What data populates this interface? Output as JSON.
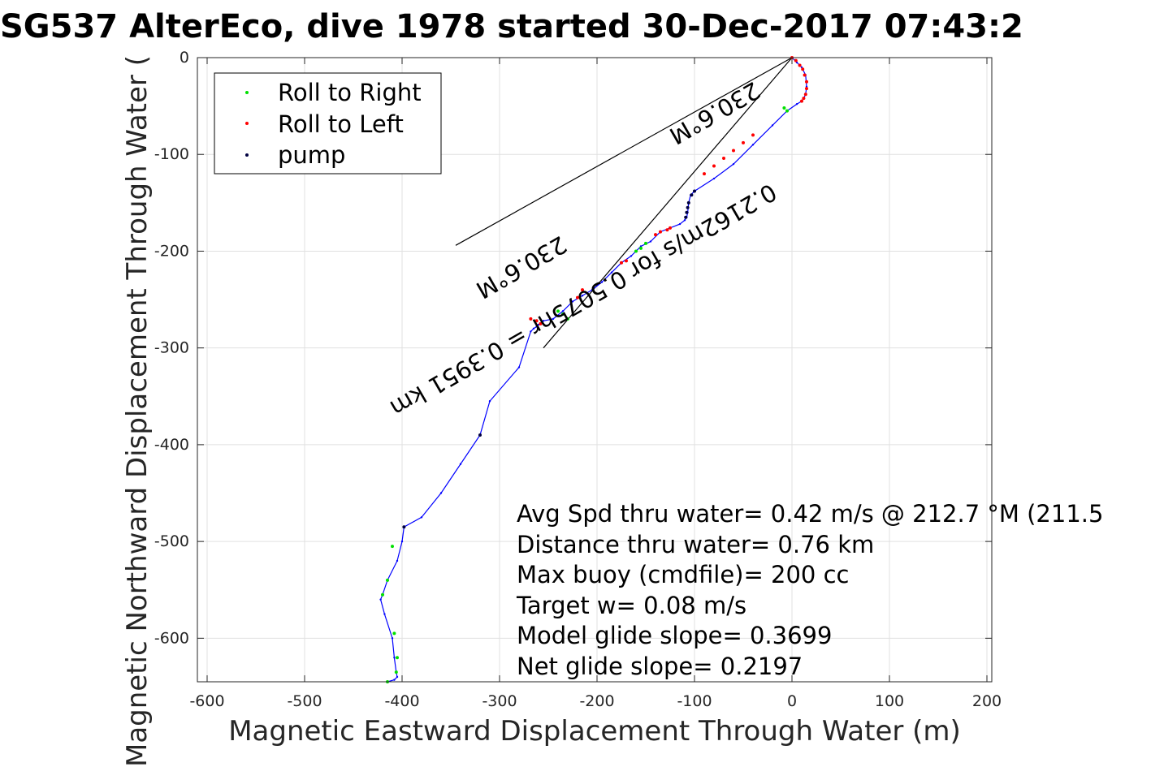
{
  "chart_data": {
    "type": "line",
    "title": "SG537 AlterEco, dive 1978 started 30-Dec-2017 07:43:2",
    "xlabel": "Magnetic Eastward Displacement Through Water (m)",
    "ylabel": "Magnetic Northward Displacement Through Water (",
    "xlim": [
      -610,
      205
    ],
    "ylim": [
      -645,
      0
    ],
    "grid": true,
    "xticks": [
      -600,
      -500,
      -400,
      -300,
      -200,
      -100,
      0,
      100,
      200
    ],
    "yticks": [
      0,
      -100,
      -200,
      -300,
      -400,
      -500,
      -600
    ],
    "colors": {
      "track": "#0000ff",
      "roll_right": "#00e000",
      "roll_left": "#ff0000",
      "pump": "#000040",
      "guide": "#000000"
    },
    "legend": {
      "position": "top-left",
      "entries": [
        "Roll to Right",
        "Roll to Left",
        "pump"
      ]
    },
    "series": [
      {
        "name": "track",
        "x": [
          0,
          5,
          10,
          14,
          15,
          14,
          12,
          10,
          5,
          -5,
          -20,
          -40,
          -60,
          -80,
          -100,
          -104,
          -106,
          -107,
          -108,
          -110,
          -115,
          -125,
          -135,
          -145,
          -155,
          -165,
          -175,
          -185,
          -195,
          -205,
          -215,
          -225,
          -235,
          -245,
          -255,
          -260,
          -262,
          -265,
          -268,
          -280,
          -310,
          -320,
          -340,
          -360,
          -380,
          -398,
          -400,
          -405,
          -415,
          -420,
          -422,
          -418,
          -410,
          -408,
          -406,
          -405,
          -408,
          -415
        ],
        "y": [
          0,
          -5,
          -10,
          -18,
          -30,
          -38,
          -42,
          -45,
          -48,
          -55,
          -70,
          -90,
          -110,
          -125,
          -138,
          -142,
          -150,
          -160,
          -165,
          -168,
          -172,
          -176,
          -180,
          -190,
          -195,
          -205,
          -212,
          -222,
          -232,
          -240,
          -246,
          -252,
          -262,
          -270,
          -272,
          -276,
          -278,
          -280,
          -283,
          -320,
          -355,
          -390,
          -420,
          -450,
          -475,
          -485,
          -500,
          -520,
          -540,
          -555,
          -560,
          -575,
          -600,
          -620,
          -635,
          -640,
          -643,
          -645
        ]
      },
      {
        "name": "Roll to Right",
        "x": [
          -5,
          -8,
          -150,
          -155,
          -160,
          -230,
          -235,
          -240,
          -410,
          -415,
          -420,
          -408,
          -405,
          -406,
          -415
        ],
        "y": [
          -55,
          -52,
          -192,
          -197,
          -200,
          -270,
          -265,
          -262,
          -505,
          -540,
          -555,
          -595,
          -620,
          -635,
          -645
        ]
      },
      {
        "name": "Roll to Left",
        "x": [
          0,
          4,
          8,
          11,
          13,
          15,
          15,
          14,
          12,
          10,
          -40,
          -50,
          -60,
          -70,
          -80,
          -90,
          -125,
          -128,
          -135,
          -140,
          -170,
          -175,
          -215,
          -220,
          -258,
          -262,
          -268
        ],
        "y": [
          0,
          -3,
          -8,
          -12,
          -18,
          -25,
          -32,
          -38,
          -42,
          -45,
          -80,
          -88,
          -96,
          -104,
          -112,
          -120,
          -176,
          -178,
          -180,
          -183,
          -210,
          -212,
          -240,
          -248,
          -275,
          -272,
          -270
        ]
      },
      {
        "name": "pump",
        "x": [
          -100,
          -103,
          -106,
          -107,
          -108,
          -109,
          -320,
          -398
        ],
        "y": [
          -138,
          -142,
          -150,
          -155,
          -160,
          -165,
          -390,
          -485
        ]
      }
    ],
    "guide_lines": [
      {
        "x": [
          0,
          -345
        ],
        "y": [
          0,
          -194
        ]
      },
      {
        "x": [
          0,
          -255
        ],
        "y": [
          0,
          -300
        ]
      }
    ],
    "rotated_annotations": [
      "0.2162m/s for 0.5075hr = 0.3951 km",
      "230.6°M",
      "230.6°M"
    ],
    "annotations": [
      "Avg Spd thru water=  0.42 m/s @ 212.7 °M (211.5",
      "Distance thru water=  0.76 km",
      "Max buoy (cmdfile)= 200 cc",
      "Target w= 0.08 m/s",
      "Model glide slope= 0.3699",
      "Net glide slope= 0.2197"
    ]
  }
}
